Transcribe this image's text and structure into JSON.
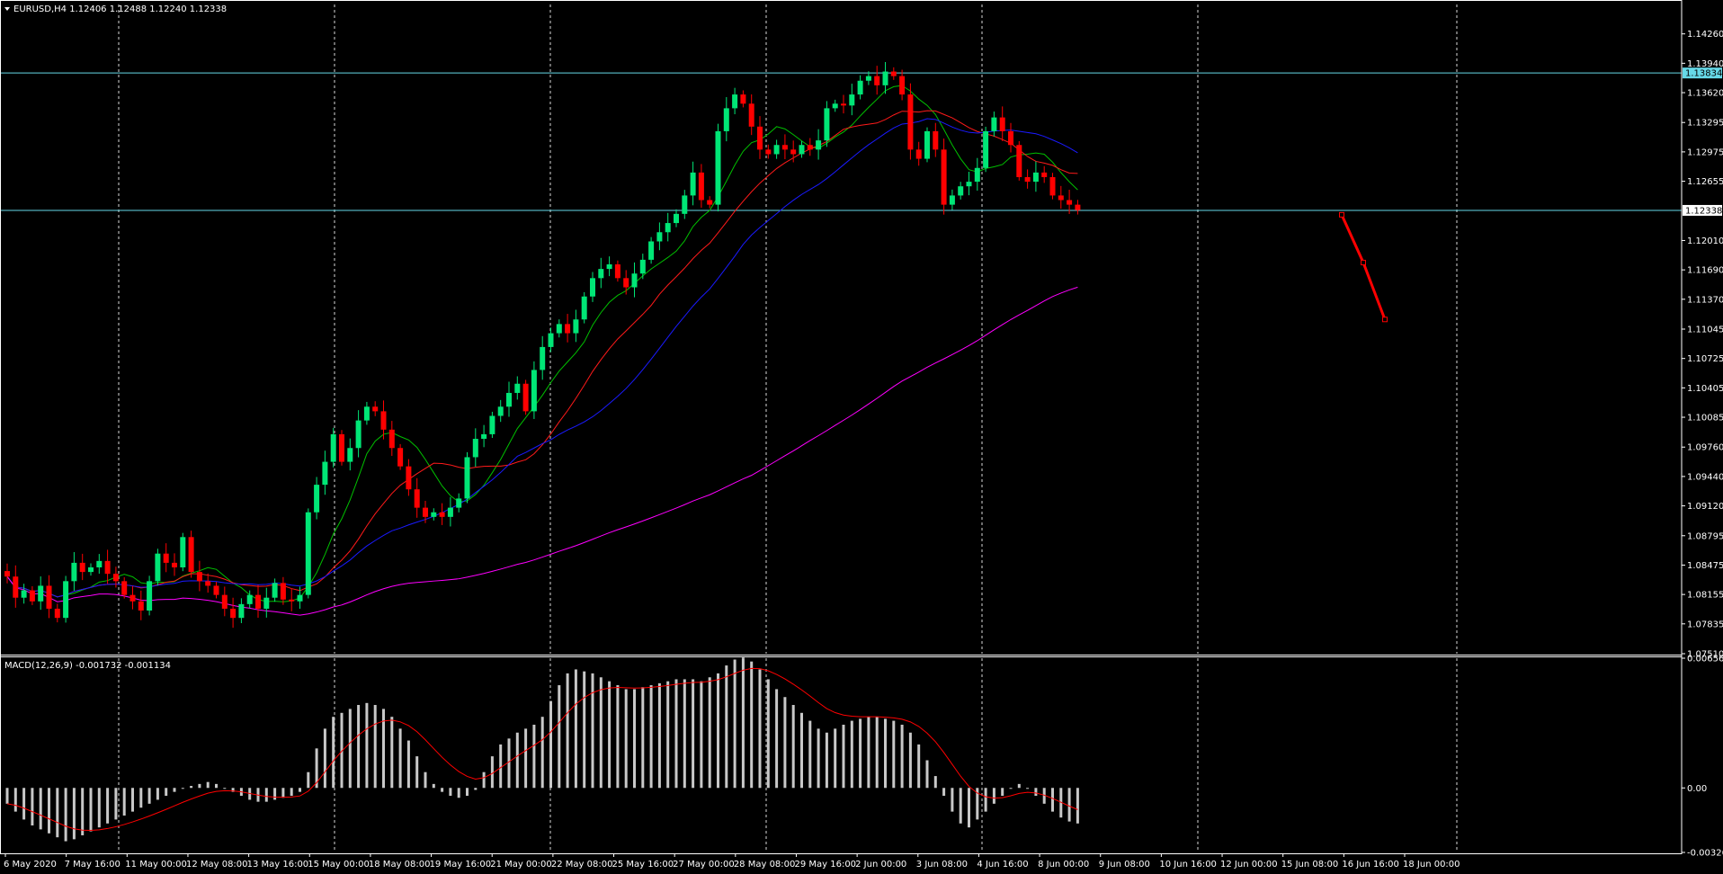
{
  "header": {
    "symbol_info": "EURUSD,H4  1.12406 1.12488 1.12240 1.12338",
    "macd_info": "MACD(12,26,9) -0.001732 -0.001134"
  },
  "colors": {
    "background": "#000000",
    "bull_candle": "#00e676",
    "bear_candle": "#ff0000",
    "ma_fast": "#00c000",
    "ma_mid": "#ff1a1a",
    "ma_slow": "#1a1aff",
    "ma_long": "#ff00ff",
    "hline": "#66d9e8",
    "macd_hist": "#c8c8c8",
    "macd_signal": "#ff0000",
    "forecast": "#ff0000"
  },
  "chart_data": [
    {
      "type": "candlestick",
      "title": "EURUSD,H4",
      "ohlc_readout": [
        1.12406,
        1.12488,
        1.1224,
        1.12338
      ],
      "y_ticks": [
        "1.14260",
        "1.13940",
        "1.13620",
        "1.13295",
        "1.12975",
        "1.12655",
        "1.12338",
        "1.12010",
        "1.11690",
        "1.11370",
        "1.11045",
        "1.10725",
        "1.10405",
        "1.10085",
        "1.09760",
        "1.09440",
        "1.09120",
        "1.08795",
        "1.08475",
        "1.08155",
        "1.07835",
        "1.07510"
      ],
      "ylim": [
        1.0751,
        1.1458
      ],
      "x_labels": [
        "6 May 2020",
        "7 May 16:00",
        "11 May 00:00",
        "12 May 08:00",
        "13 May 16:00",
        "15 May 00:00",
        "18 May 08:00",
        "19 May 16:00",
        "21 May 00:00",
        "22 May 08:00",
        "25 May 16:00",
        "27 May 00:00",
        "28 May 08:00",
        "29 May 16:00",
        "2 Jun 00:00",
        "3 Jun 08:00",
        "4 Jun 16:00",
        "8 Jun 00:00",
        "9 Jun 08:00",
        "10 Jun 16:00",
        "12 Jun 00:00",
        "15 Jun 08:00",
        "16 Jun 16:00",
        "18 Jun 00:00"
      ],
      "horizontal_lines": [
        {
          "label": "1.13834",
          "value": 1.13834
        },
        {
          "label": "1.12338",
          "value": 1.12338
        }
      ],
      "close_path": [
        1.0835,
        1.0812,
        1.082,
        1.0808,
        1.0825,
        1.08,
        1.079,
        1.083,
        1.085,
        1.084,
        1.0845,
        1.0852,
        1.0838,
        1.083,
        1.0815,
        1.0808,
        1.0798,
        1.083,
        1.086,
        1.085,
        1.0845,
        1.0878,
        1.084,
        1.083,
        1.0825,
        1.0815,
        1.08,
        1.079,
        1.0805,
        1.0815,
        1.08,
        1.0812,
        1.0828,
        1.081,
        1.0808,
        1.0815,
        1.0905,
        1.0935,
        1.096,
        1.099,
        1.096,
        1.0975,
        1.1005,
        1.102,
        1.1015,
        1.0995,
        1.0975,
        1.0955,
        1.093,
        1.091,
        1.09,
        1.0905,
        1.09,
        1.091,
        1.092,
        1.0965,
        1.0985,
        1.099,
        1.101,
        1.102,
        1.1035,
        1.1045,
        1.1015,
        1.106,
        1.1085,
        1.11,
        1.111,
        1.11,
        1.1115,
        1.114,
        1.116,
        1.117,
        1.1175,
        1.116,
        1.115,
        1.1165,
        1.118,
        1.12,
        1.121,
        1.122,
        1.123,
        1.125,
        1.1275,
        1.1245,
        1.124,
        1.132,
        1.1345,
        1.136,
        1.135,
        1.1325,
        1.13,
        1.1295,
        1.1305,
        1.13,
        1.1295,
        1.1305,
        1.13,
        1.131,
        1.1345,
        1.135,
        1.1348,
        1.136,
        1.1375,
        1.138,
        1.137,
        1.1385,
        1.138,
        1.136,
        1.13,
        1.129,
        1.132,
        1.13,
        1.124,
        1.125,
        1.126,
        1.1265,
        1.128,
        1.132,
        1.1335,
        1.132,
        1.1305,
        1.127,
        1.1265,
        1.1275,
        1.127,
        1.125,
        1.1245,
        1.124,
        1.1234
      ],
      "forecast_points": [
        1.1229,
        1.1177,
        1.1115
      ]
    },
    {
      "type": "bar",
      "title": "MACD(12,26,9)",
      "readout": [
        -0.001732,
        -0.001134
      ],
      "y_ticks": [
        "0.006568",
        "0.00",
        "-0.003266"
      ],
      "ylim": [
        -0.003266,
        0.006568
      ],
      "series": [
        {
          "name": "MACD",
          "values": [
            -0.0008,
            -0.0012,
            -0.0016,
            -0.0019,
            -0.0021,
            -0.0023,
            -0.0025,
            -0.0027,
            -0.0026,
            -0.0024,
            -0.0022,
            -0.002,
            -0.0018,
            -0.0016,
            -0.0014,
            -0.0012,
            -0.001,
            -0.0008,
            -0.0006,
            -0.0004,
            -0.0002,
            0.0,
            0.0001,
            0.0002,
            0.0003,
            0.0002,
            0.0,
            -0.0002,
            -0.0004,
            -0.0006,
            -0.0007,
            -0.0007,
            -0.0006,
            -0.0005,
            -0.0004,
            -0.0002,
            0.0008,
            0.002,
            0.003,
            0.0036,
            0.0038,
            0.004,
            0.0042,
            0.0043,
            0.0042,
            0.004,
            0.0036,
            0.003,
            0.0024,
            0.0016,
            0.0008,
            0.0002,
            -0.0002,
            -0.0004,
            -0.0005,
            -0.0004,
            -0.0001,
            0.0008,
            0.0016,
            0.0022,
            0.0025,
            0.0028,
            0.003,
            0.0032,
            0.0036,
            0.0044,
            0.0052,
            0.0058,
            0.006,
            0.0059,
            0.0058,
            0.0056,
            0.0054,
            0.0052,
            0.005,
            0.005,
            0.0051,
            0.0052,
            0.0053,
            0.0054,
            0.0055,
            0.0055,
            0.0055,
            0.0054,
            0.0056,
            0.0058,
            0.0062,
            0.0065,
            0.0066,
            0.0064,
            0.006,
            0.0055,
            0.005,
            0.0046,
            0.0042,
            0.0038,
            0.0034,
            0.003,
            0.0028,
            0.003,
            0.0032,
            0.0034,
            0.0035,
            0.0036,
            0.0036,
            0.0035,
            0.0034,
            0.0032,
            0.0028,
            0.0022,
            0.0014,
            0.0006,
            -0.0004,
            -0.0012,
            -0.0018,
            -0.002,
            -0.0016,
            -0.0012,
            -0.0008,
            -0.0004,
            0.0,
            0.0002,
            0.0,
            -0.0004,
            -0.0008,
            -0.0012,
            -0.0015,
            -0.0017,
            -0.0018
          ]
        }
      ]
    }
  ]
}
